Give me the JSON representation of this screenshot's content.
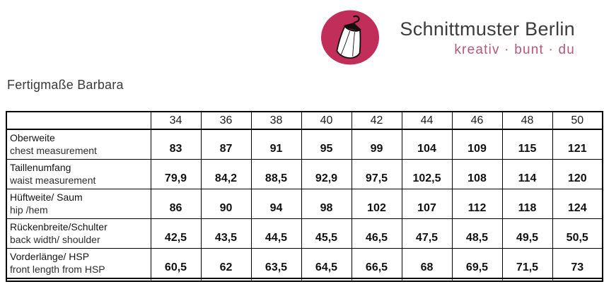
{
  "brand": {
    "name": "Schnittmuster Berlin",
    "tagline": "kreativ · bunt · du",
    "logo_icon": "dress-on-hanger-icon",
    "colors": {
      "logo_circle": "#c02e59",
      "tagline_text": "#b2587a",
      "brand_text": "#3c3c3c"
    }
  },
  "page": {
    "title": "Fertigmaße Barbara"
  },
  "table": {
    "sizes": [
      "34",
      "36",
      "38",
      "40",
      "42",
      "44",
      "46",
      "48",
      "50"
    ],
    "rows": [
      {
        "label_de": "Oberweite",
        "label_en": "chest measurement",
        "values": [
          "83",
          "87",
          "91",
          "95",
          "99",
          "104",
          "109",
          "115",
          "121"
        ]
      },
      {
        "label_de": "Taillenumfang",
        "label_en": "waist measurement",
        "values": [
          "79,9",
          "84,2",
          "88,5",
          "92,9",
          "97,5",
          "102,5",
          "108",
          "114",
          "120"
        ]
      },
      {
        "label_de": "Hüftweite/ Saum",
        "label_en": "hip /hem",
        "values": [
          "86",
          "90",
          "94",
          "98",
          "102",
          "107",
          "112",
          "118",
          "124"
        ]
      },
      {
        "label_de": "Rückenbreite/Schulter",
        "label_en": "back width/ shoulder",
        "values": [
          "42,5",
          "43,5",
          "44,5",
          "45,5",
          "46,5",
          "47,5",
          "48,5",
          "49,5",
          "50,5"
        ]
      },
      {
        "label_de": "Vorderlänge/ HSP",
        "label_en": "front length from HSP",
        "values": [
          "60,5",
          "62",
          "63,5",
          "64,5",
          "66,5",
          "68",
          "69,5",
          "71,5",
          "73"
        ]
      }
    ]
  },
  "chart_data": {
    "type": "table",
    "title": "Fertigmaße Barbara",
    "categories": [
      "34",
      "36",
      "38",
      "40",
      "42",
      "44",
      "46",
      "48",
      "50"
    ],
    "series": [
      {
        "name": "Oberweite / chest measurement",
        "values": [
          83,
          87,
          91,
          95,
          99,
          104,
          109,
          115,
          121
        ]
      },
      {
        "name": "Taillenumfang / waist measurement",
        "values": [
          79.9,
          84.2,
          88.5,
          92.9,
          97.5,
          102.5,
          108,
          114,
          120
        ]
      },
      {
        "name": "Hüftweite/ Saum / hip /hem",
        "values": [
          86,
          90,
          94,
          98,
          102,
          107,
          112,
          118,
          124
        ]
      },
      {
        "name": "Rückenbreite/Schulter / back width/ shoulder",
        "values": [
          42.5,
          43.5,
          44.5,
          45.5,
          46.5,
          47.5,
          48.5,
          49.5,
          50.5
        ]
      },
      {
        "name": "Vorderlänge/ HSP / front length from HSP",
        "values": [
          60.5,
          62,
          63.5,
          64.5,
          66.5,
          68,
          69.5,
          71.5,
          73
        ]
      }
    ]
  }
}
